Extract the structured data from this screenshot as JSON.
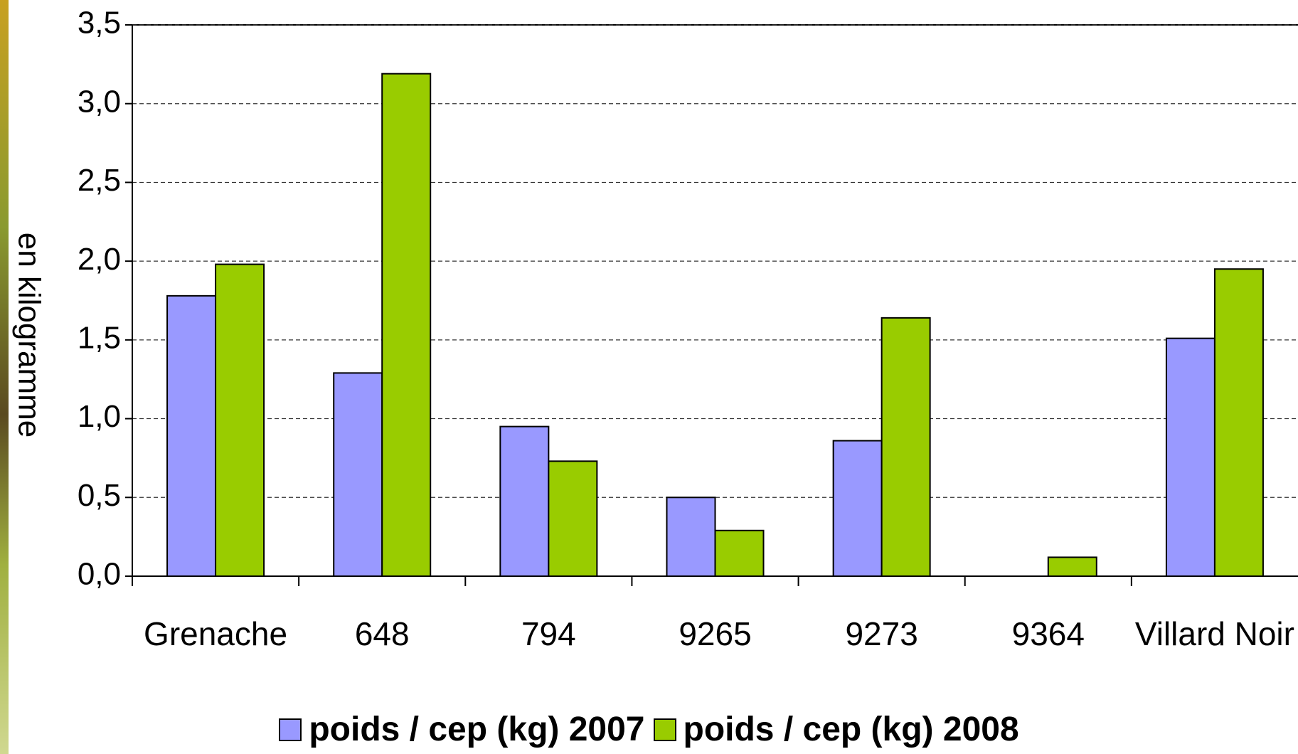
{
  "chart_data": {
    "type": "bar",
    "y_label": "en kilogramme",
    "categories": [
      "Grenache",
      "648",
      "794",
      "9265",
      "9273",
      "9364",
      "Villard Noir"
    ],
    "series": [
      {
        "name": "poids / cep (kg) 2007",
        "color": "#9999ff",
        "values": [
          1.78,
          1.29,
          0.95,
          0.5,
          0.86,
          null,
          1.51
        ]
      },
      {
        "name": "poids / cep (kg) 2008",
        "color": "#99cc00",
        "values": [
          1.98,
          3.19,
          0.73,
          0.29,
          1.64,
          0.12,
          1.95
        ]
      }
    ],
    "ylim": [
      0,
      3.5
    ],
    "yticks": [
      {
        "value": 0,
        "label": "0,0"
      },
      {
        "value": 0.5,
        "label": "0,5"
      },
      {
        "value": 1,
        "label": "1,0"
      },
      {
        "value": 1.5,
        "label": "1,5"
      },
      {
        "value": 2,
        "label": "2,0"
      },
      {
        "value": 2.5,
        "label": "2,5"
      },
      {
        "value": 3,
        "label": "3,0"
      },
      {
        "value": 3.5,
        "label": "3,5"
      }
    ],
    "grid": true
  }
}
